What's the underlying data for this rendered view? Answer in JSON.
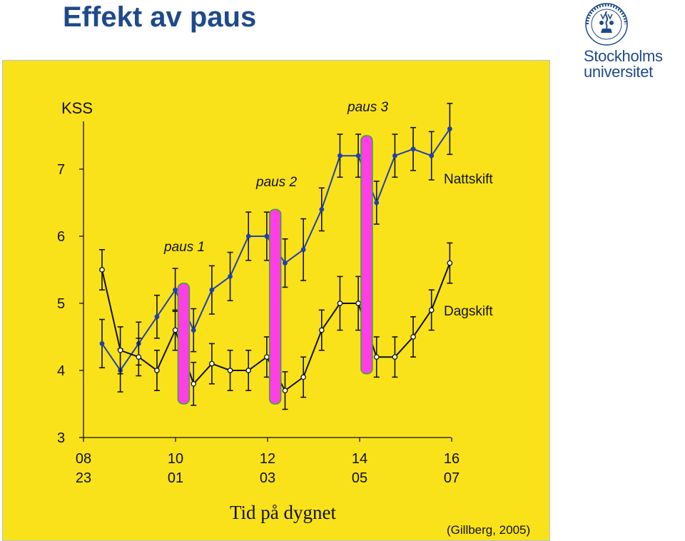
{
  "header": {
    "title": "Effekt av paus"
  },
  "logo": {
    "line1": "Stockholms",
    "line2": "universitet",
    "seal_text": "UNIVERSITET STOCKHOLMS",
    "color": "#1e4a8a"
  },
  "chart_data": {
    "type": "line",
    "title": "",
    "ylabel": "KSS",
    "xlabel": "Tid på dygnet",
    "ylim": [
      3,
      7.8
    ],
    "yticks": [
      3,
      4,
      5,
      6,
      7
    ],
    "x_index_range": [
      0,
      19
    ],
    "xticks": [
      {
        "index": 0,
        "top": "08",
        "bottom": "23"
      },
      {
        "index": 5,
        "top": "10",
        "bottom": "01"
      },
      {
        "index": 10,
        "top": "12",
        "bottom": "03"
      },
      {
        "index": 15,
        "top": "14",
        "bottom": "05"
      },
      {
        "index": 20,
        "top": "16",
        "bottom": "07"
      }
    ],
    "series": [
      {
        "name": "Nattskift",
        "color": "#1f3fb5",
        "marker": "filled-circle",
        "points": [
          {
            "x": 0,
            "y": 4.4,
            "err": 0.36
          },
          {
            "x": 1,
            "y": 4.0,
            "err": 0.32
          },
          {
            "x": 2,
            "y": 4.4,
            "err": 0.32
          },
          {
            "x": 3,
            "y": 4.8,
            "err": 0.32
          },
          {
            "x": 4,
            "y": 5.2,
            "err": 0.32
          },
          {
            "x": 5,
            "y": 4.6,
            "err": 0.32
          },
          {
            "x": 6,
            "y": 5.2,
            "err": 0.36
          },
          {
            "x": 7,
            "y": 5.4,
            "err": 0.36
          },
          {
            "x": 8,
            "y": 6.0,
            "err": 0.36
          },
          {
            "x": 9,
            "y": 6.0,
            "err": 0.36
          },
          {
            "x": 10,
            "y": 5.6,
            "err": 0.36
          },
          {
            "x": 11,
            "y": 5.8,
            "err": 0.46
          },
          {
            "x": 12,
            "y": 6.4,
            "err": 0.32
          },
          {
            "x": 13,
            "y": 7.2,
            "err": 0.32
          },
          {
            "x": 14,
            "y": 7.2,
            "err": 0.32
          },
          {
            "x": 15,
            "y": 6.5,
            "err": 0.32
          },
          {
            "x": 16,
            "y": 7.2,
            "err": 0.32
          },
          {
            "x": 17,
            "y": 7.3,
            "err": 0.32
          },
          {
            "x": 18,
            "y": 7.2,
            "err": 0.36
          },
          {
            "x": 19,
            "y": 7.6,
            "err": 0.38
          }
        ]
      },
      {
        "name": "Dagskift",
        "color": "#111111",
        "marker": "open-circle",
        "points": [
          {
            "x": 0,
            "y": 5.5,
            "err": 0.3
          },
          {
            "x": 1,
            "y": 4.3,
            "err": 0.35
          },
          {
            "x": 2,
            "y": 4.2,
            "err": 0.28
          },
          {
            "x": 3,
            "y": 4.0,
            "err": 0.3
          },
          {
            "x": 4,
            "y": 4.6,
            "err": 0.3
          },
          {
            "x": 5,
            "y": 3.8,
            "err": 0.32
          },
          {
            "x": 6,
            "y": 4.1,
            "err": 0.3
          },
          {
            "x": 7,
            "y": 4.0,
            "err": 0.3
          },
          {
            "x": 8,
            "y": 4.0,
            "err": 0.3
          },
          {
            "x": 9,
            "y": 4.2,
            "err": 0.3
          },
          {
            "x": 10,
            "y": 3.7,
            "err": 0.28
          },
          {
            "x": 11,
            "y": 3.9,
            "err": 0.3
          },
          {
            "x": 12,
            "y": 4.6,
            "err": 0.3
          },
          {
            "x": 13,
            "y": 5.0,
            "err": 0.4
          },
          {
            "x": 14,
            "y": 5.0,
            "err": 0.4
          },
          {
            "x": 15,
            "y": 4.2,
            "err": 0.3
          },
          {
            "x": 16,
            "y": 4.2,
            "err": 0.3
          },
          {
            "x": 17,
            "y": 4.5,
            "err": 0.3
          },
          {
            "x": 18,
            "y": 4.9,
            "err": 0.3
          },
          {
            "x": 19,
            "y": 5.6,
            "err": 0.3
          }
        ]
      }
    ],
    "pauses": [
      {
        "label": "paus 1",
        "x": 4.5,
        "y_top": 5.3,
        "y_bottom": 3.5
      },
      {
        "label": "paus 2",
        "x": 9.5,
        "y_top": 6.4,
        "y_bottom": 3.5
      },
      {
        "label": "paus 3",
        "x": 14.5,
        "y_top": 7.5,
        "y_bottom": 3.95
      }
    ],
    "pause_fill": "#ff3fe6",
    "pause_stroke": "#3aa635",
    "series_labels": [
      {
        "text": "Nattskift"
      },
      {
        "text": "Dagskift"
      }
    ],
    "background": "#f9e21a",
    "legend": "inline-right"
  },
  "citation": "(Gillberg, 2005)"
}
